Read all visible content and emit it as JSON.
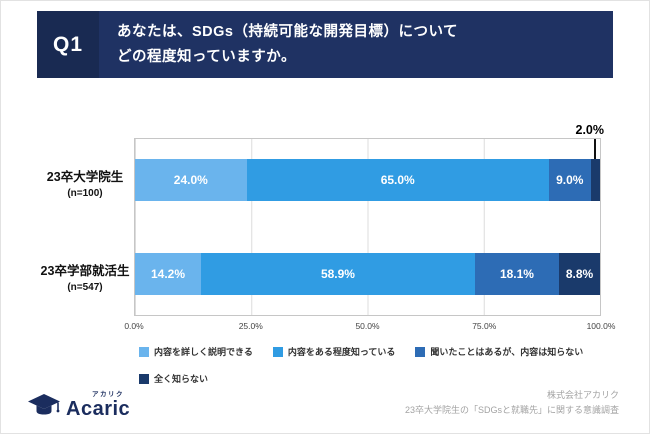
{
  "theme": {
    "q_box_bg": "#192a52",
    "header_bg": "#1f3263",
    "logo_color": "#1b2d5e"
  },
  "header": {
    "q_label": "Q1",
    "question_line1": "あなたは、SDGs（持続可能な開発目標）について",
    "question_line2": "どの程度知っていますか。"
  },
  "chart_data": {
    "type": "bar",
    "orientation": "horizontal",
    "stacked": true,
    "categories": [
      {
        "label": "23卒大学院生",
        "sub": "(n=100)"
      },
      {
        "label": "23卒学部就活生",
        "sub": "(n=547)"
      }
    ],
    "series": [
      {
        "name": "内容を詳しく説明できる",
        "color": "#6ab4ed",
        "values": [
          24.0,
          14.2
        ]
      },
      {
        "name": "内容をある程度知っている",
        "color": "#309ce3",
        "values": [
          65.0,
          58.9
        ]
      },
      {
        "name": "聞いたことはあるが、内容は知らない",
        "color": "#2d6cb5",
        "values": [
          9.0,
          18.1
        ]
      },
      {
        "name": "全く知らない",
        "color": "#1a3a6b",
        "values": [
          2.0,
          8.8
        ]
      }
    ],
    "x_ticks": [
      "0.0%",
      "25.0%",
      "50.0%",
      "75.0%",
      "100.0%"
    ],
    "xlim": [
      0,
      100
    ],
    "grid": true,
    "legend_position": "bottom",
    "callout_label": "2.0%"
  },
  "footer": {
    "logo_text": "Acaric",
    "logo_kana": "アカリク",
    "credit_line1": "株式会社アカリク",
    "credit_line2": "23卒大学院生の「SDGsと就職先」に関する意識調査"
  }
}
